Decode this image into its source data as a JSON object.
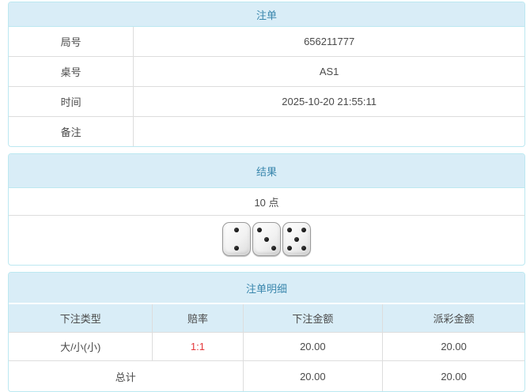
{
  "colors": {
    "heading_bg": "#d9edf7",
    "heading_text": "#3a87ad",
    "panel_border": "#bce8f1",
    "cell_border": "#dddddd",
    "body_text": "#4a4a4a",
    "odds_red": "#e4393c"
  },
  "order_panel": {
    "title": "注单",
    "rows": [
      {
        "label": "局号",
        "value": "656211777"
      },
      {
        "label": "桌号",
        "value": "AS1"
      },
      {
        "label": "时间",
        "value": "2025-10-20 21:55:11"
      },
      {
        "label": "备注",
        "value": ""
      }
    ]
  },
  "result_panel": {
    "title": "结果",
    "points_text": "10 点",
    "dice": [
      {
        "value": 2,
        "pips": [
          2,
          8
        ]
      },
      {
        "value": 3,
        "pips": [
          1,
          5,
          9
        ]
      },
      {
        "value": 5,
        "pips": [
          1,
          3,
          5,
          7,
          9
        ]
      }
    ]
  },
  "detail_panel": {
    "title": "注单明细",
    "columns": [
      "下注类型",
      "赔率",
      "下注金额",
      "派彩金额"
    ],
    "rows": [
      {
        "bet_type": "大/小(小)",
        "odds": "1:1",
        "bet_amount": "20.00",
        "payout_amount": "20.00"
      }
    ],
    "total": {
      "label": "总计",
      "bet_amount": "20.00",
      "payout_amount": "20.00"
    }
  }
}
